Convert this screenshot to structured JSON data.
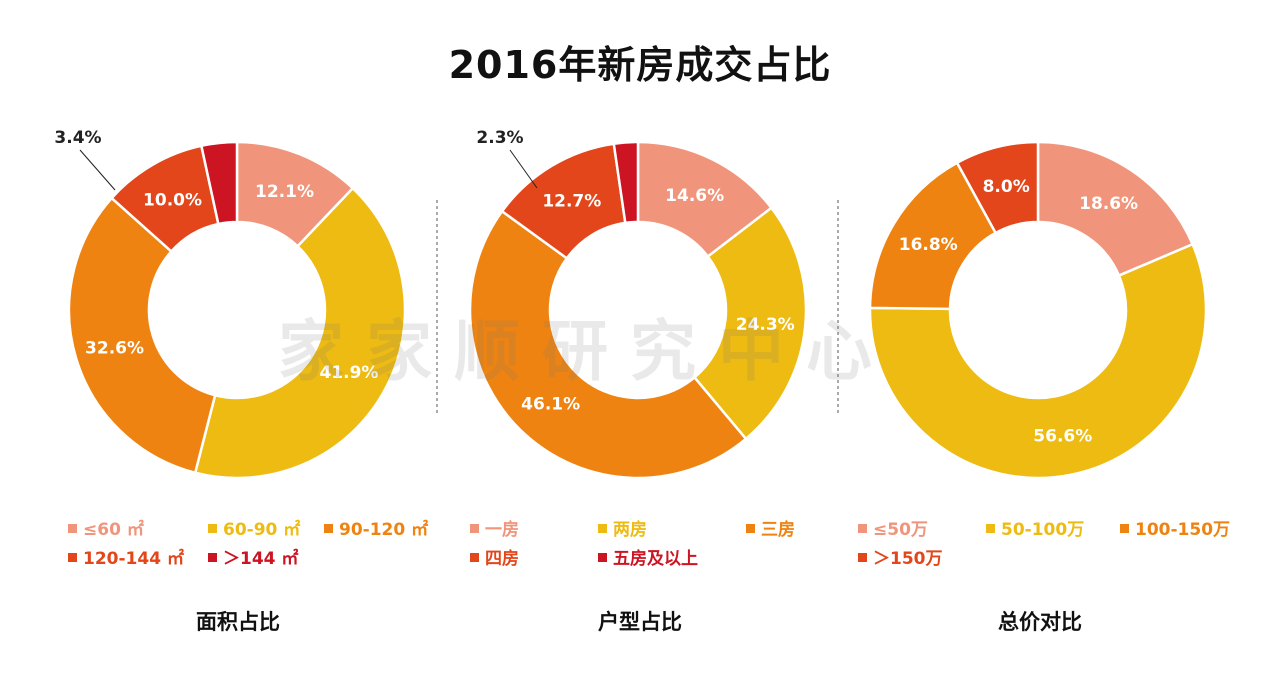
{
  "title": "2016年新房成交占比",
  "watermark": "家家顺研究中心",
  "colors": {
    "peach": "#F0957B",
    "gold": "#EDBB12",
    "orange": "#EE8311",
    "redorange": "#E2461A",
    "red": "#CC1423"
  },
  "chart_data": [
    {
      "type": "pie",
      "subtype": "donut",
      "caption": "面积占比",
      "slices": [
        {
          "label": "≤60 ㎡",
          "value": 12.1,
          "value_label": "12.1%",
          "color": "#F0957B"
        },
        {
          "label": "60-90 ㎡",
          "value": 41.9,
          "value_label": "41.9%",
          "color": "#EDBB12"
        },
        {
          "label": "90-120 ㎡",
          "value": 32.6,
          "value_label": "32.6%",
          "color": "#EE8311"
        },
        {
          "label": "120-144 ㎡",
          "value": 10.0,
          "value_label": "10.0%",
          "color": "#E2461A"
        },
        {
          "label": "＞144 ㎡",
          "value": 3.4,
          "value_label": "3.4%",
          "color": "#CC1423",
          "callout": true
        }
      ]
    },
    {
      "type": "pie",
      "subtype": "donut",
      "caption": "户型占比",
      "slices": [
        {
          "label": "一房",
          "value": 14.6,
          "value_label": "14.6%",
          "color": "#F0957B"
        },
        {
          "label": "两房",
          "value": 24.3,
          "value_label": "24.3%",
          "color": "#EDBB12"
        },
        {
          "label": "三房",
          "value": 46.1,
          "value_label": "46.1%",
          "color": "#EE8311"
        },
        {
          "label": "四房",
          "value": 12.7,
          "value_label": "12.7%",
          "color": "#E2461A"
        },
        {
          "label": "五房及以上",
          "value": 2.3,
          "value_label": "2.3%",
          "color": "#CC1423",
          "callout": true
        }
      ]
    },
    {
      "type": "pie",
      "subtype": "donut",
      "caption": "总价对比",
      "slices": [
        {
          "label": "≤50万",
          "value": 18.6,
          "value_label": "18.6%",
          "color": "#F0957B"
        },
        {
          "label": "50-100万",
          "value": 56.6,
          "value_label": "56.6%",
          "color": "#EDBB12"
        },
        {
          "label": "100-150万",
          "value": 16.8,
          "value_label": "16.8%",
          "color": "#EE8311"
        },
        {
          "label": "＞150万",
          "value": 8.0,
          "value_label": "8.0%",
          "color": "#E2461A"
        }
      ]
    }
  ]
}
